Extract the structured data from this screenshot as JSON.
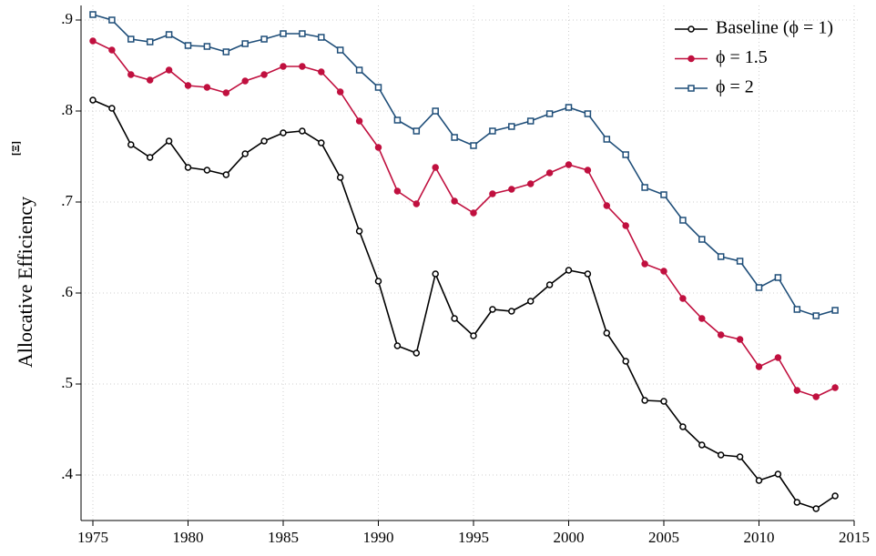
{
  "chart_data": {
    "type": "line",
    "y_label": "Allocative Efficiency",
    "y_label_symbol": "[Ξ]",
    "x": [
      1975,
      1976,
      1977,
      1978,
      1979,
      1980,
      1981,
      1982,
      1983,
      1984,
      1985,
      1986,
      1987,
      1988,
      1989,
      1990,
      1991,
      1992,
      1993,
      1994,
      1995,
      1996,
      1997,
      1998,
      1999,
      2000,
      2001,
      2002,
      2003,
      2004,
      2005,
      2006,
      2007,
      2008,
      2009,
      2010,
      2011,
      2012,
      2013,
      2014
    ],
    "series": [
      {
        "name": "Baseline (ϕ = 1)",
        "color": "#000000",
        "marker": "hollow-circle",
        "values": [
          0.812,
          0.803,
          0.763,
          0.749,
          0.767,
          0.738,
          0.735,
          0.73,
          0.753,
          0.767,
          0.776,
          0.778,
          0.765,
          0.727,
          0.668,
          0.613,
          0.542,
          0.534,
          0.621,
          0.572,
          0.553,
          0.582,
          0.58,
          0.591,
          0.609,
          0.625,
          0.621,
          0.556,
          0.525,
          0.482,
          0.481,
          0.453,
          0.433,
          0.422,
          0.42,
          0.394,
          0.401,
          0.37,
          0.363,
          0.377
        ]
      },
      {
        "name": "ϕ = 1.5",
        "color": "#c0103f",
        "marker": "filled-circle",
        "values": [
          0.877,
          0.867,
          0.84,
          0.834,
          0.845,
          0.828,
          0.826,
          0.82,
          0.833,
          0.84,
          0.849,
          0.849,
          0.843,
          0.821,
          0.789,
          0.76,
          0.712,
          0.698,
          0.738,
          0.701,
          0.688,
          0.709,
          0.714,
          0.72,
          0.732,
          0.741,
          0.735,
          0.696,
          0.674,
          0.632,
          0.624,
          0.594,
          0.572,
          0.554,
          0.549,
          0.519,
          0.529,
          0.493,
          0.486,
          0.496
        ]
      },
      {
        "name": "ϕ = 2",
        "color": "#1f4e79",
        "marker": "hollow-square",
        "values": [
          0.906,
          0.9,
          0.879,
          0.876,
          0.884,
          0.872,
          0.871,
          0.865,
          0.874,
          0.879,
          0.885,
          0.885,
          0.881,
          0.867,
          0.845,
          0.826,
          0.79,
          0.778,
          0.8,
          0.771,
          0.762,
          0.778,
          0.783,
          0.789,
          0.797,
          0.804,
          0.797,
          0.769,
          0.752,
          0.716,
          0.708,
          0.68,
          0.659,
          0.64,
          0.635,
          0.606,
          0.617,
          0.582,
          0.575,
          0.581
        ]
      }
    ],
    "xlim": [
      1975,
      2015
    ],
    "xticks": [
      1975,
      1980,
      1985,
      1990,
      1995,
      2000,
      2005,
      2010,
      2015
    ],
    "ylim": [
      0.35,
      0.91
    ],
    "yticks": [
      {
        "value": 0.4,
        "label": ".4"
      },
      {
        "value": 0.5,
        "label": ".5"
      },
      {
        "value": 0.6,
        "label": ".6"
      },
      {
        "value": 0.7,
        "label": ".7"
      },
      {
        "value": 0.8,
        "label": ".8"
      },
      {
        "value": 0.9,
        "label": ".9"
      }
    ],
    "grid": true,
    "legend": "top-right"
  }
}
